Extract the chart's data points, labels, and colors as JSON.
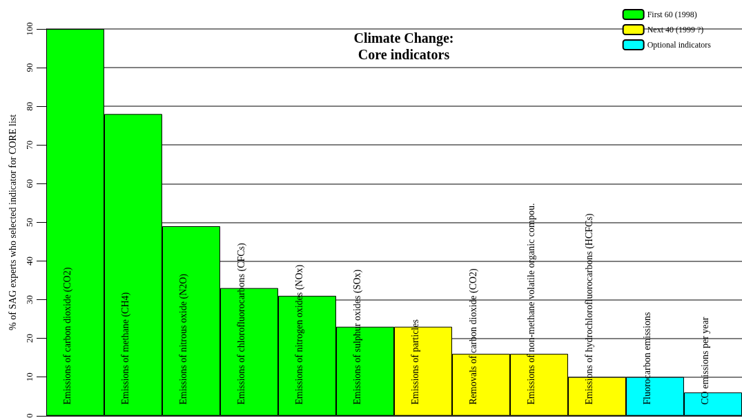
{
  "chart_data": {
    "type": "bar",
    "title": "Climate Change:\nCore indicators",
    "ylabel": "% of SAG experts who selected indicator for CORE list",
    "categories": [
      "Emissions of carbon dioxide (CO2)",
      "Emissions of methane (CH4)",
      "Emissions of nitrous oxide (N2O)",
      "Emissions of chlorofluorocarbons (CFCs)",
      "Emissions of nitrogen oxides (NOx)",
      "Emissions of sulphur oxides (SOx)",
      "Emissions of particles",
      "Removals of carbon dioxide (CO2)",
      "Emissions of non-methane volatile organic compou.",
      "Emissions of hydrochlorofluorocarbons (HCFCs)",
      "Fluorocarbon emissions",
      "CO emissions per year"
    ],
    "series": [
      {
        "name": "First 60 (1998)",
        "color": "#00ff00",
        "values": [
          100,
          78,
          49,
          33,
          31,
          23,
          null,
          null,
          null,
          null,
          null,
          null
        ]
      },
      {
        "name": "Next 40 (1999 ?)",
        "color": "#ffff00",
        "values": [
          null,
          null,
          null,
          null,
          null,
          null,
          23,
          16,
          16,
          10,
          null,
          null
        ]
      },
      {
        "name": "Optional indicators",
        "color": "#00ffff",
        "values": [
          null,
          null,
          null,
          null,
          null,
          null,
          null,
          null,
          null,
          null,
          10,
          6
        ]
      }
    ],
    "ylim": [
      0,
      100
    ],
    "yticks": [
      0,
      10,
      20,
      30,
      40,
      50,
      60,
      70,
      80,
      90,
      100
    ],
    "grid": "y",
    "legend": "top right"
  }
}
